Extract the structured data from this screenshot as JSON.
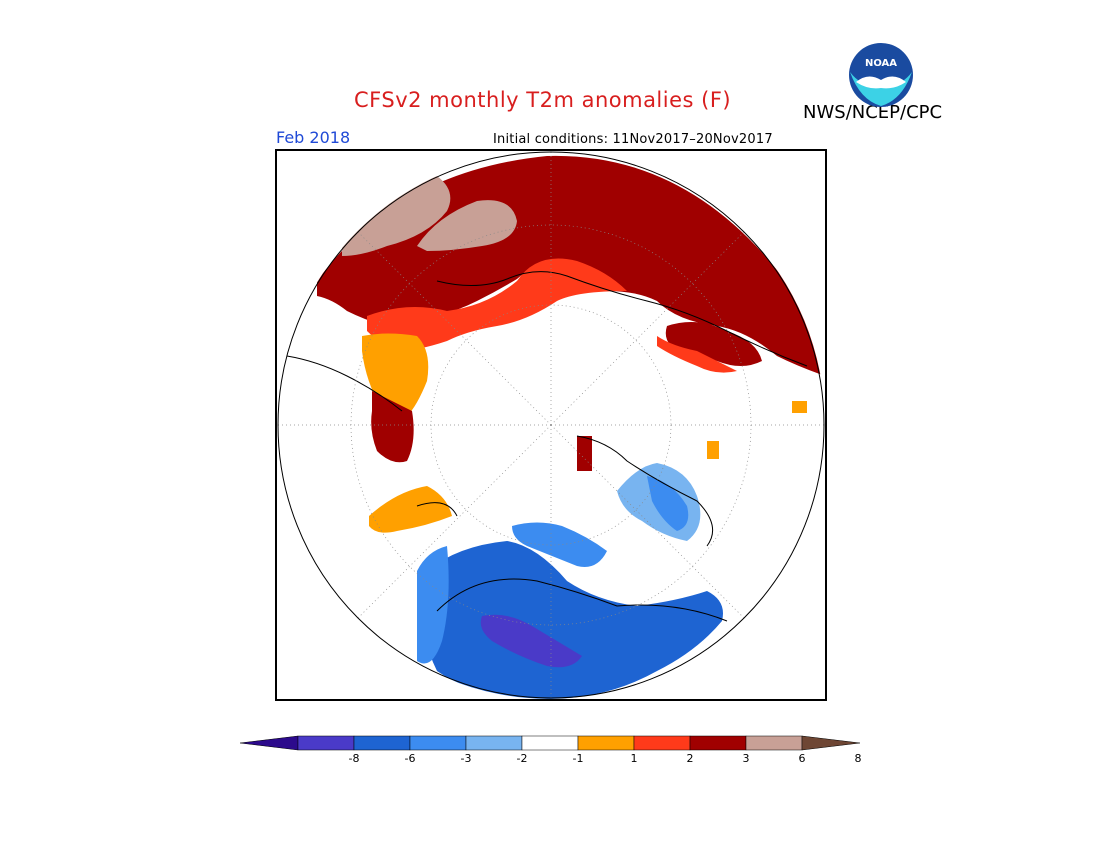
{
  "header": {
    "title": "CFSv2 monthly T2m anomalies (F)",
    "period": "Feb 2018",
    "initial_conditions": "Initial conditions: 11Nov2017–20Nov2017",
    "agency": "NWS/NCEP/CPC",
    "logo_text": "NOAA"
  },
  "map": {
    "projection": "north-polar-stereographic",
    "regions": [
      {
        "name": "northern-eurasia-warm",
        "color": "#a00000"
      },
      {
        "name": "far-north-siberia-warmest",
        "color": "#c8a096"
      },
      {
        "name": "europe-warm",
        "color": "#ff3a1a"
      },
      {
        "name": "scandinavia-warm",
        "color": "#ffa000"
      },
      {
        "name": "north-america-cold",
        "color": "#1e64d2"
      },
      {
        "name": "canada-coldest",
        "color": "#4a3ac8"
      },
      {
        "name": "alaska-cold",
        "color": "#3c8cf0"
      }
    ]
  },
  "colorbar": {
    "colors": [
      "#2c0a8c",
      "#4a3ac8",
      "#1e64d2",
      "#3c8cf0",
      "#78b4f0",
      "#ffffff",
      "#ffa000",
      "#ff3a1a",
      "#a00000",
      "#c8a096",
      "#6e4634"
    ],
    "labels": [
      "-8",
      "-6",
      "-3",
      "-2",
      "-1",
      "1",
      "2",
      "3",
      "6",
      "8"
    ]
  }
}
